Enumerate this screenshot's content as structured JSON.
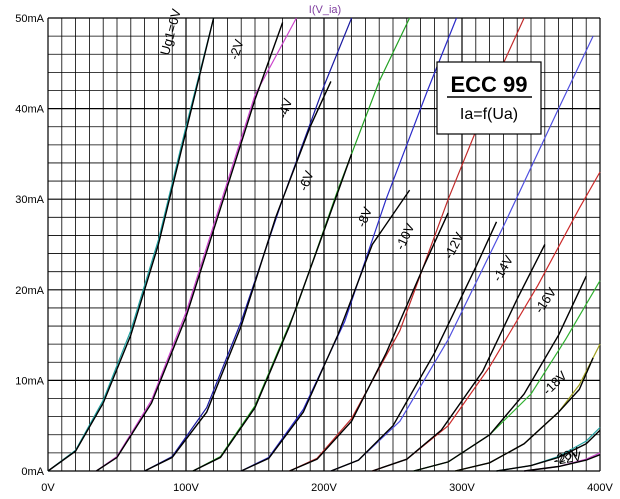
{
  "chart_data": {
    "type": "line",
    "title": "I(V_ia)",
    "xlim": [
      0,
      400
    ],
    "ylim": [
      0,
      50
    ],
    "grid": true,
    "x_ticks": [
      {
        "value": 0,
        "label": "0V"
      },
      {
        "value": 100,
        "label": "100V"
      },
      {
        "value": 200,
        "label": "200V"
      },
      {
        "value": 300,
        "label": "300V"
      },
      {
        "value": 400,
        "label": "400V"
      }
    ],
    "y_ticks": [
      {
        "value": 0,
        "label": "0mA"
      },
      {
        "value": 10,
        "label": "10mA"
      },
      {
        "value": 20,
        "label": "20mA"
      },
      {
        "value": 30,
        "label": "30mA"
      },
      {
        "value": 40,
        "label": "40mA"
      },
      {
        "value": 50,
        "label": "50mA"
      }
    ],
    "info_box": {
      "title": "ECC 99",
      "subtitle": "Ia=f(Ua)"
    },
    "colors": {
      "title": "#8040a0",
      "measured": "#000000",
      "simulated": [
        "#20a0a0",
        "#cc44cc",
        "#1a1aa0",
        "#22a022",
        "#2a2ac8",
        "#c02a2a",
        "#5050e0",
        "#cc2a2a",
        "#30b030",
        "#a0a020",
        "#20a0a0",
        "#cc44cc"
      ]
    },
    "series": [
      {
        "name": "Ug1=0V",
        "bias": 0,
        "measured": [
          [
            0,
            0
          ],
          [
            20,
            2.2
          ],
          [
            40,
            7.5
          ],
          [
            60,
            15
          ],
          [
            80,
            25
          ],
          [
            100,
            37.5
          ],
          [
            120,
            50
          ]
        ],
        "simulated": [
          [
            0,
            0
          ],
          [
            20,
            2.3
          ],
          [
            40,
            7.8
          ],
          [
            60,
            15.5
          ],
          [
            80,
            25.5
          ],
          [
            100,
            38
          ],
          [
            120,
            50
          ]
        ]
      },
      {
        "name": "-2V",
        "bias": -2,
        "measured": [
          [
            35,
            0
          ],
          [
            50,
            1.5
          ],
          [
            75,
            7.5
          ],
          [
            100,
            17
          ],
          [
            125,
            29
          ],
          [
            150,
            41
          ],
          [
            170,
            49.5
          ]
        ],
        "simulated": [
          [
            35,
            0
          ],
          [
            50,
            1.6
          ],
          [
            75,
            7.8
          ],
          [
            100,
            17.5
          ],
          [
            125,
            29.5
          ],
          [
            150,
            41.5
          ],
          [
            180,
            50
          ]
        ]
      },
      {
        "name": "-4V",
        "bias": -4,
        "measured": [
          [
            70,
            0
          ],
          [
            90,
            1.5
          ],
          [
            115,
            6.5
          ],
          [
            140,
            16
          ],
          [
            165,
            28
          ],
          [
            190,
            38
          ],
          [
            205,
            43
          ]
        ],
        "simulated": [
          [
            70,
            0
          ],
          [
            90,
            1.6
          ],
          [
            115,
            7
          ],
          [
            140,
            16.5
          ],
          [
            170,
            30
          ],
          [
            200,
            42.5
          ],
          [
            220,
            50
          ]
        ]
      },
      {
        "name": "-6V",
        "bias": -6,
        "measured": [
          [
            105,
            0
          ],
          [
            125,
            1.5
          ],
          [
            150,
            7
          ],
          [
            175,
            16
          ],
          [
            200,
            26.5
          ],
          [
            220,
            35
          ]
        ],
        "simulated": [
          [
            105,
            0
          ],
          [
            125,
            1.6
          ],
          [
            150,
            7.2
          ],
          [
            180,
            18
          ],
          [
            210,
            31
          ],
          [
            240,
            43
          ],
          [
            262,
            50
          ]
        ]
      },
      {
        "name": "-8V",
        "bias": -8,
        "measured": [
          [
            140,
            0
          ],
          [
            160,
            1.4
          ],
          [
            185,
            6.5
          ],
          [
            210,
            15
          ],
          [
            235,
            25
          ],
          [
            262,
            31
          ]
        ],
        "simulated": [
          [
            140,
            0
          ],
          [
            160,
            1.5
          ],
          [
            185,
            6.8
          ],
          [
            215,
            16.5
          ],
          [
            245,
            30
          ],
          [
            275,
            42
          ],
          [
            296,
            50
          ]
        ]
      },
      {
        "name": "-10V",
        "bias": -10,
        "measured": [
          [
            175,
            0
          ],
          [
            195,
            1.3
          ],
          [
            220,
            5.5
          ],
          [
            245,
            13
          ],
          [
            272,
            22.5
          ],
          [
            290,
            28.5
          ]
        ],
        "simulated": [
          [
            175,
            0
          ],
          [
            195,
            1.4
          ],
          [
            220,
            5.8
          ],
          [
            255,
            15.5
          ],
          [
            290,
            30
          ],
          [
            330,
            45
          ],
          [
            345,
            50
          ]
        ]
      },
      {
        "name": "-12V",
        "bias": -12,
        "measured": [
          [
            205,
            0
          ],
          [
            225,
            1.2
          ],
          [
            250,
            5
          ],
          [
            280,
            13
          ],
          [
            310,
            22.5
          ],
          [
            325,
            27.5
          ]
        ],
        "simulated": [
          [
            205,
            0
          ],
          [
            225,
            1.2
          ],
          [
            255,
            5.5
          ],
          [
            290,
            14.5
          ],
          [
            330,
            27
          ],
          [
            370,
            40
          ],
          [
            395,
            48
          ]
        ]
      },
      {
        "name": "-14V",
        "bias": -14,
        "measured": [
          [
            235,
            0
          ],
          [
            260,
            1.3
          ],
          [
            285,
            4.5
          ],
          [
            315,
            11
          ],
          [
            340,
            19
          ],
          [
            360,
            25
          ]
        ],
        "simulated": [
          [
            235,
            0
          ],
          [
            260,
            1.3
          ],
          [
            290,
            5
          ],
          [
            320,
            11.5
          ],
          [
            355,
            20.5
          ],
          [
            385,
            29
          ],
          [
            400,
            33
          ]
        ]
      },
      {
        "name": "-16V",
        "bias": -16,
        "measured": [
          [
            265,
            0
          ],
          [
            290,
            1
          ],
          [
            320,
            4
          ],
          [
            345,
            8.5
          ],
          [
            370,
            15
          ],
          [
            390,
            21.5
          ]
        ],
        "simulated": [
          [
            265,
            0
          ],
          [
            290,
            1
          ],
          [
            320,
            4
          ],
          [
            350,
            8.5
          ],
          [
            375,
            14.5
          ],
          [
            400,
            21
          ]
        ]
      },
      {
        "name": "-18V",
        "bias": -18,
        "measured": [
          [
            295,
            0
          ],
          [
            320,
            0.9
          ],
          [
            345,
            3
          ],
          [
            370,
            6.5
          ],
          [
            385,
            9
          ],
          [
            395,
            12.5
          ]
        ],
        "simulated": [
          [
            295,
            0
          ],
          [
            320,
            0.9
          ],
          [
            345,
            3
          ],
          [
            370,
            6.5
          ],
          [
            385,
            9.5
          ],
          [
            400,
            14
          ]
        ]
      },
      {
        "name": "-20V",
        "bias": -20,
        "measured": [
          [
            325,
            0
          ],
          [
            350,
            0.6
          ],
          [
            370,
            1.5
          ],
          [
            390,
            3
          ],
          [
            400,
            4.5
          ]
        ],
        "simulated": [
          [
            325,
            0
          ],
          [
            350,
            0.6
          ],
          [
            370,
            1.6
          ],
          [
            390,
            3.3
          ],
          [
            400,
            4.8
          ]
        ]
      },
      {
        "name": "-22V",
        "bias": -22,
        "measured": [
          [
            345,
            0
          ],
          [
            370,
            0.5
          ],
          [
            390,
            1.2
          ],
          [
            400,
            1.8
          ]
        ],
        "simulated": [
          [
            345,
            0
          ],
          [
            370,
            0.5
          ],
          [
            390,
            1.3
          ],
          [
            400,
            2
          ]
        ]
      }
    ]
  }
}
